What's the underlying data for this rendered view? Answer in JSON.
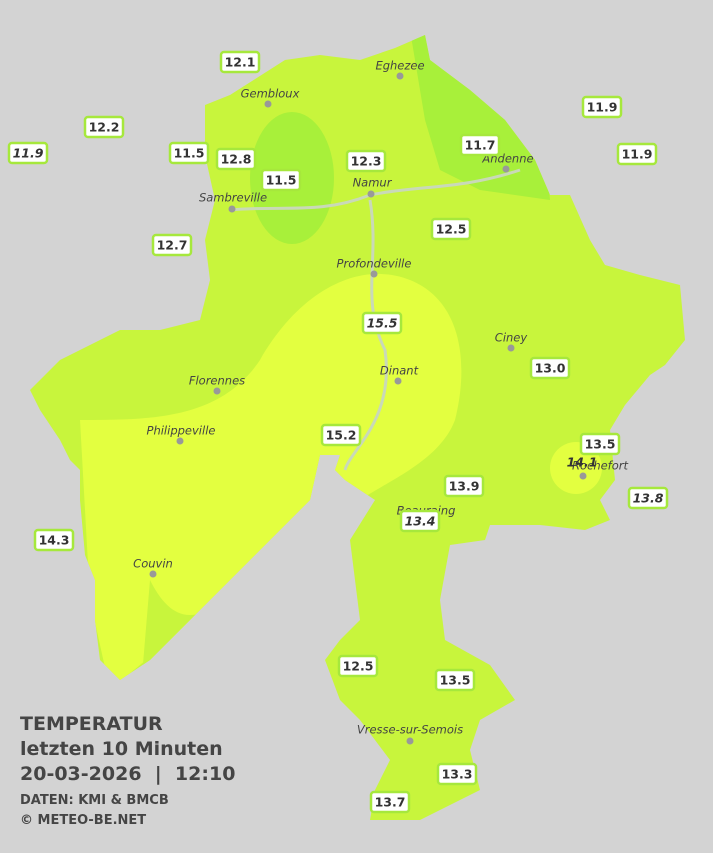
{
  "header": {
    "title": "TEMPERATUR",
    "subtitle": "letzten 10 Minuten",
    "datetime": "20-03-2026  |  12:10",
    "source": "DATEN: KMI & BMCB",
    "copyright": "© METEO-BE.NET"
  },
  "stations": [
    "12.1",
    "12.2",
    "11.9",
    "11.5",
    "12.8",
    "11.5",
    "12.3",
    "11.7",
    "11.9",
    "11.9",
    "12.5",
    "12.7",
    "15.5",
    "13.0",
    "15.2",
    "13.5",
    "14.1",
    "13.9",
    "13.8",
    "13.4",
    "14.3",
    "12.5",
    "13.5",
    "13.3",
    "13.7"
  ],
  "cities": [
    "Eghezee",
    "Gembloux",
    "Andenne",
    "Namur",
    "Sambreville",
    "Profondeville",
    "Ciney",
    "Dinant",
    "Florennes",
    "Philippeville",
    "Rochefort",
    "Beauraing",
    "Couvin",
    "Vresse-sur-Semois"
  ]
}
